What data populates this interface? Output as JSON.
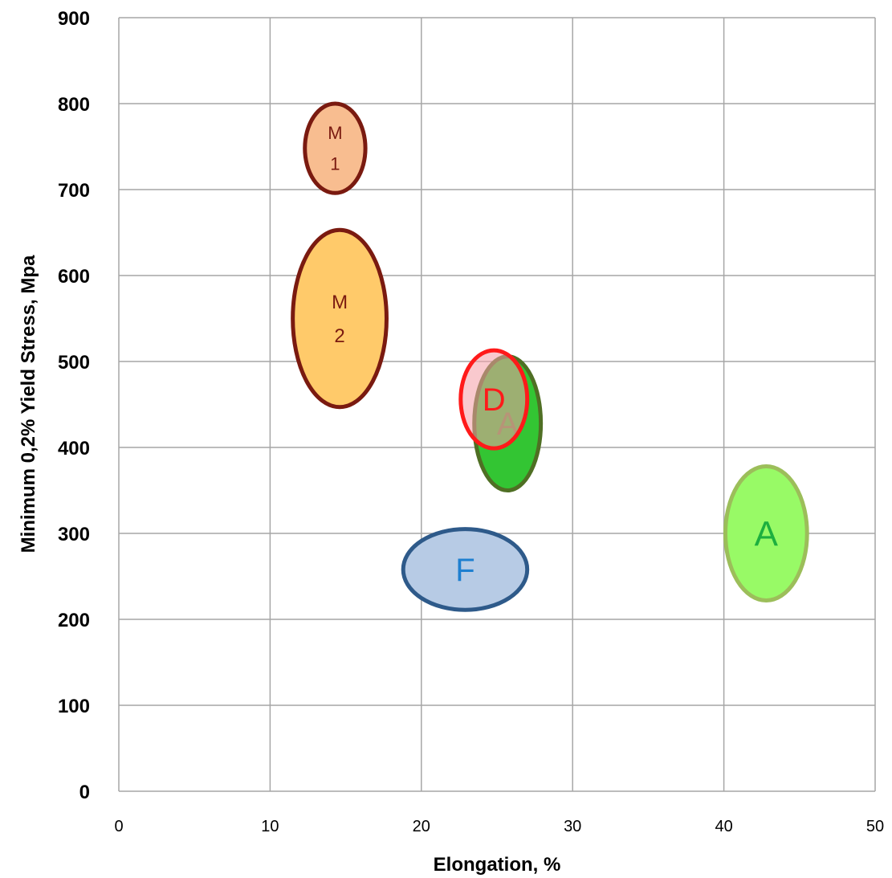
{
  "chart_data": {
    "type": "scatter",
    "title": "",
    "xlabel": "Elongation, %",
    "ylabel": "Minimum 0,2% Yield Stress, Mpa",
    "xlim": [
      0,
      50
    ],
    "ylim": [
      0,
      900
    ],
    "x_ticks": [
      0,
      10,
      20,
      30,
      40,
      50
    ],
    "y_ticks": [
      0,
      100,
      200,
      300,
      400,
      500,
      600,
      700,
      800,
      900
    ],
    "grid": true,
    "legend": "none",
    "regions": [
      {
        "id": "m1",
        "label_lines": [
          "M",
          "1"
        ],
        "cx": 14.3,
        "cy": 748,
        "rx": 2.0,
        "ry": 52,
        "fill": "#F8BD90",
        "stroke": "#7A1A10",
        "text_color": "#7A1A10",
        "font_size": 22
      },
      {
        "id": "m2",
        "label_lines": [
          "M",
          "2"
        ],
        "cx": 14.6,
        "cy": 550,
        "rx": 3.1,
        "ry": 103,
        "fill": "#FFCA6A",
        "stroke": "#7A1A10",
        "text_color": "#7A1A10",
        "font_size": 24
      },
      {
        "id": "a_mid",
        "label_lines": [
          "A"
        ],
        "cx": 25.7,
        "cy": 428,
        "rx": 2.2,
        "ry": 78,
        "fill": "#33C533",
        "stroke": "#4F6F24",
        "text_color": "#6E8A3E",
        "font_size": 40
      },
      {
        "id": "d",
        "label_lines": [
          "D"
        ],
        "cx": 24.8,
        "cy": 456,
        "rx": 2.2,
        "ry": 57,
        "fill": "rgba(244,156,166,0.55)",
        "stroke": "#FF1A1A",
        "text_color": "#FF1A1A",
        "font_size": 40
      },
      {
        "id": "f",
        "label_lines": [
          "F"
        ],
        "cx": 22.9,
        "cy": 258,
        "rx": 4.1,
        "ry": 47,
        "fill": "#B7CBE5",
        "stroke": "#2E5A8A",
        "text_color": "#1E7FD0",
        "font_size": 40
      },
      {
        "id": "a_right",
        "label_lines": [
          "A"
        ],
        "cx": 42.8,
        "cy": 300,
        "rx": 2.7,
        "ry": 78,
        "fill": "#98FA66",
        "stroke": "#9CBE5A",
        "text_color": "#1DAF3F",
        "font_size": 44
      }
    ]
  }
}
